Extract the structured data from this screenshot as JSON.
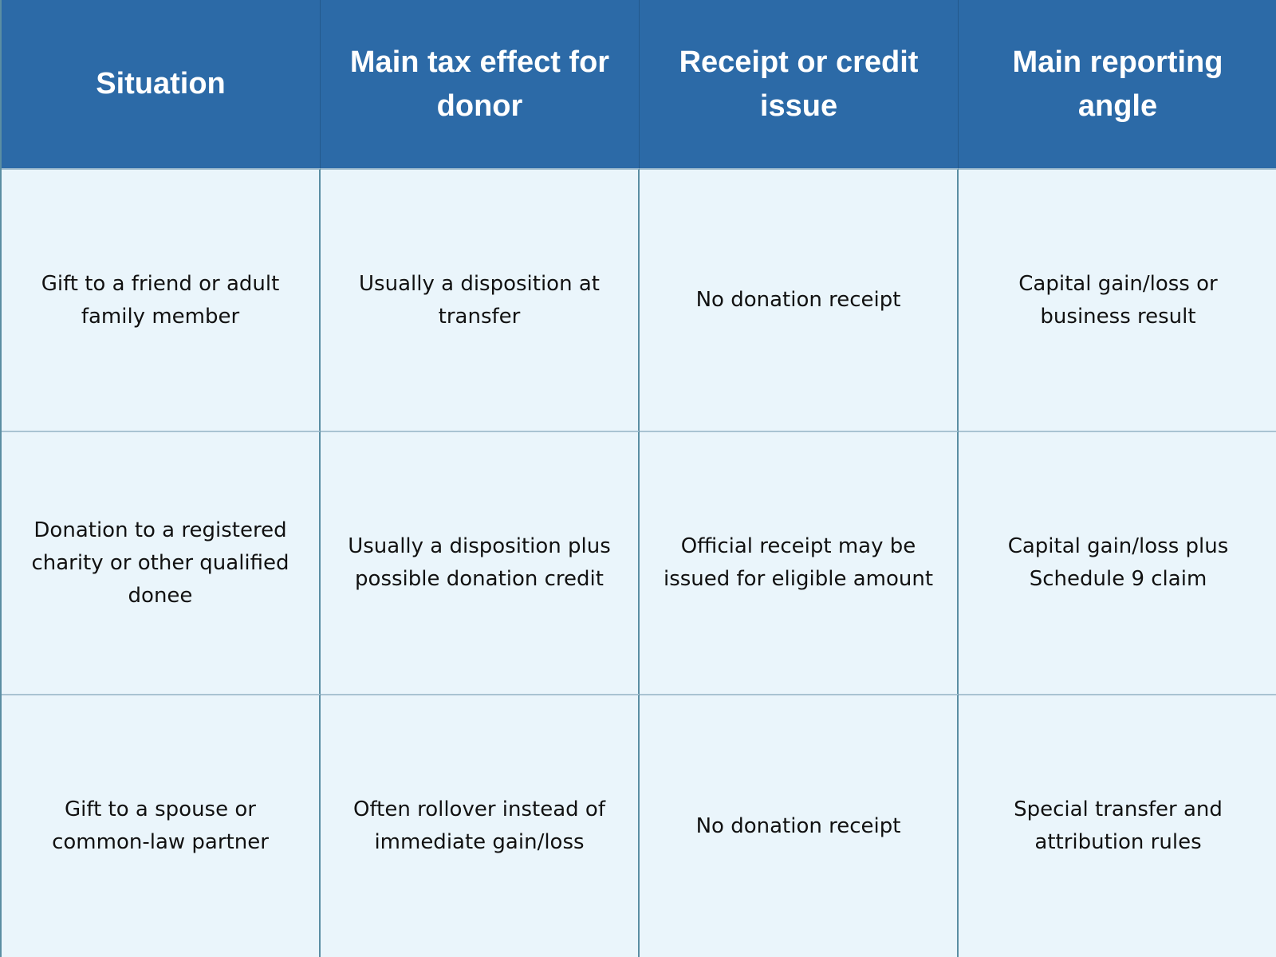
{
  "table": {
    "headers": [
      "Situation",
      "Main tax effect for donor",
      "Receipt or credit issue",
      "Main reporting angle"
    ],
    "rows": [
      [
        "Gift to a friend or adult family member",
        "Usually a disposition at transfer",
        "No donation receipt",
        "Capital gain/loss or business result"
      ],
      [
        "Donation to a registered charity or other qualified donee",
        "Usually a disposition plus possible donation credit",
        "Official receipt may be issued for eligible amount",
        "Capital gain/loss plus Schedule 9 claim"
      ],
      [
        "Gift to a spouse or common-law partner",
        "Often rollover instead of immediate gain/loss",
        "No donation receipt",
        "Special transfer and attribution rules"
      ]
    ]
  },
  "colors": {
    "header_bg": "#2c6aa7",
    "header_text": "#ffffff",
    "cell_bg": "#eaf5fb",
    "cell_text": "#111111",
    "border": "#5b8ea3"
  }
}
